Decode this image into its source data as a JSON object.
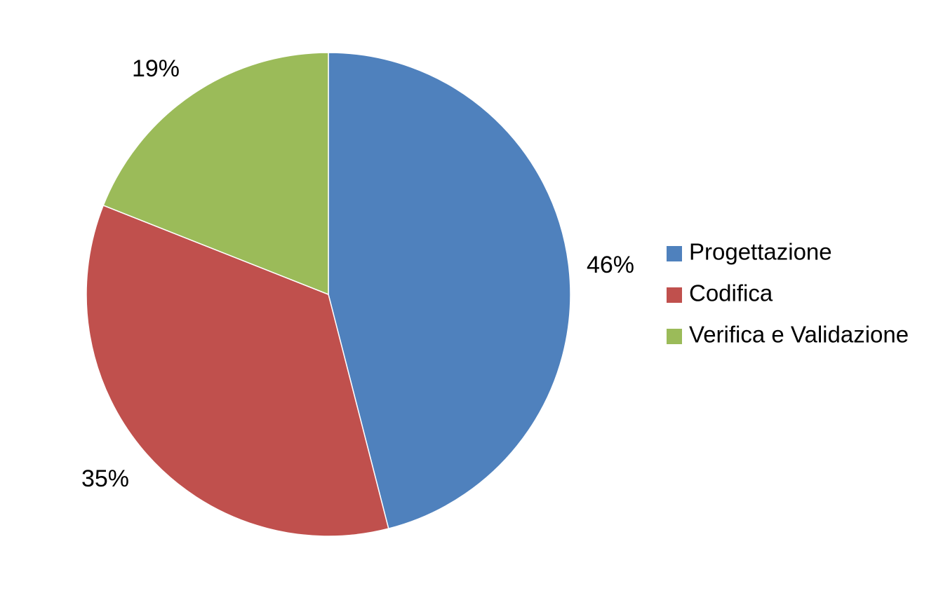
{
  "chart_data": {
    "type": "pie",
    "title": "",
    "categories": [
      "Progettazione",
      "Codifica",
      "Verifica e Validazione"
    ],
    "values": [
      46,
      35,
      19
    ],
    "data_labels": [
      "46%",
      "35%",
      "19%"
    ],
    "colors": [
      "#4F81BD",
      "#C0504D",
      "#9BBB59"
    ],
    "start_angle": "12 o'clock",
    "direction": "clockwise",
    "legend": {
      "placement": "right",
      "entries": [
        "Progettazione",
        "Codifica",
        "Verifica e Validazione"
      ]
    }
  }
}
